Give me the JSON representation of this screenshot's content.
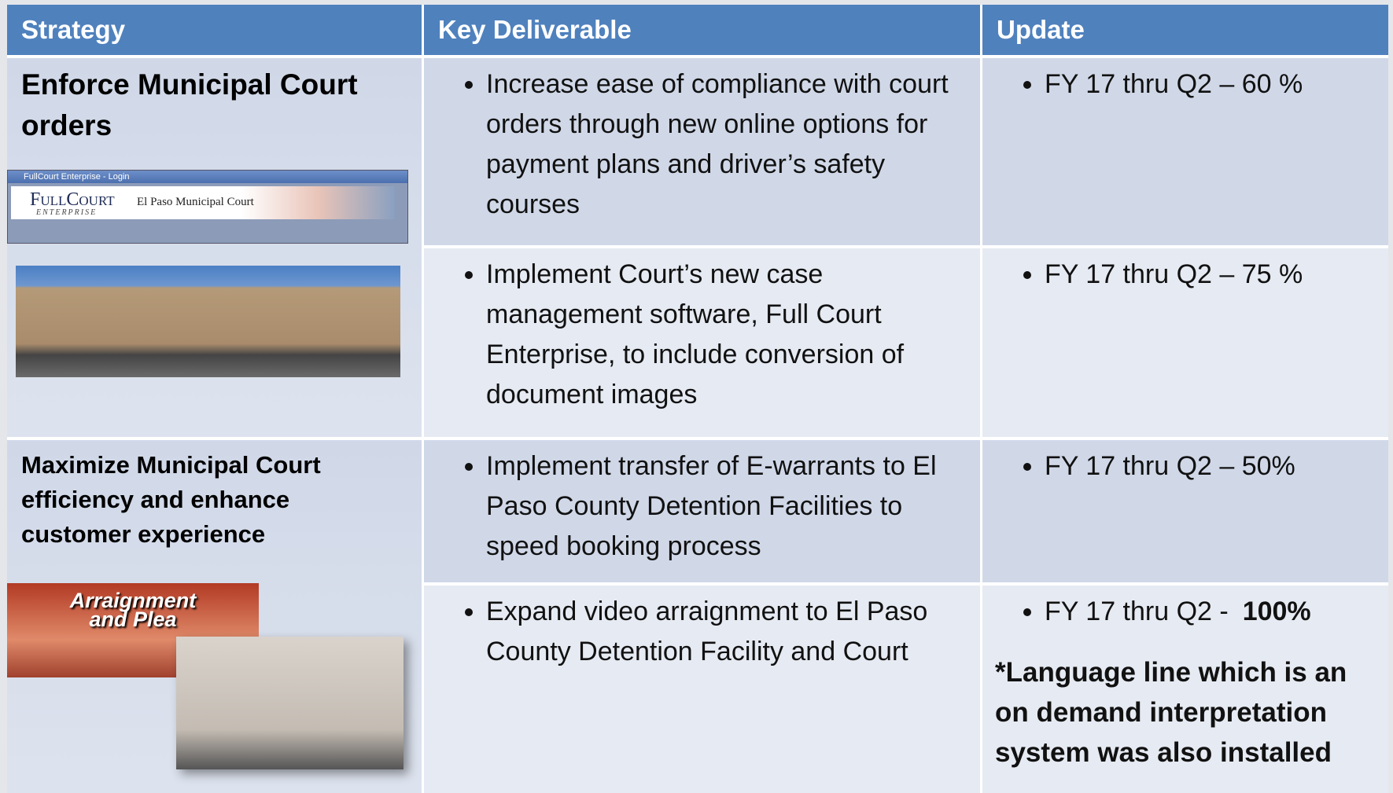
{
  "table": {
    "header": [
      "Strategy",
      "Key Deliverable",
      "Update"
    ],
    "strategies": [
      {
        "text": "Enforce Municipal Court orders",
        "login_window": {
          "title": "FullCourt Enterprise - Login",
          "logo": "FullCourt",
          "logo_sub": "ENTERPRISE",
          "court": "El Paso Municipal Court"
        }
      },
      {
        "text": "Maximize Municipal Court efficiency and enhance customer experience",
        "banner": [
          "Arraignment",
          "and Plea"
        ]
      }
    ],
    "rows": [
      {
        "deliverable": "Increase ease of compliance with court orders through new online options for payment plans and driver’s safety courses",
        "update": "FY 17 thru Q2 – 60 %"
      },
      {
        "deliverable": "Implement Court’s new case management software, Full Court Enterprise, to include conversion of document images",
        "update": "FY 17 thru Q2 – 75 %"
      },
      {
        "deliverable": "Implement transfer of E-warrants to El Paso County Detention Facilities to speed booking process",
        "update": "FY 17 thru Q2 – 50%"
      },
      {
        "deliverable": "Expand video arraignment to El Paso County Detention Facility and Court",
        "update": "FY 17 thru Q2 -",
        "update_emphasis": "100%",
        "note": "*Language line which is an on demand interpretation system was also installed"
      }
    ]
  }
}
